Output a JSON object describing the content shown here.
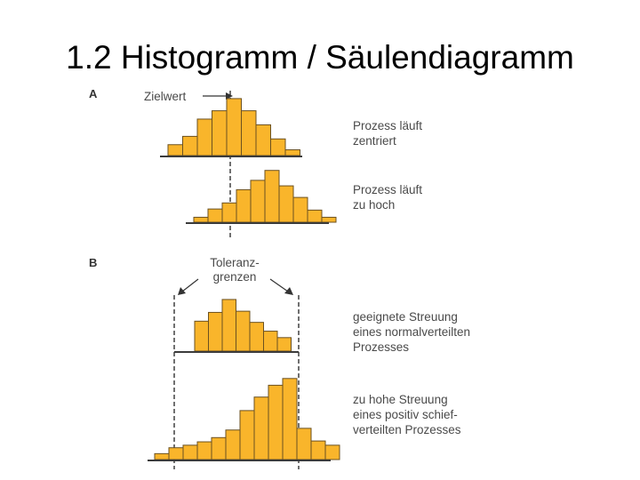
{
  "title": "1.2 Histogramm / Säulendiagramm",
  "section_a": {
    "label": "A",
    "target_label": "Zielwert",
    "hist_centered": {
      "values": [
        0.17,
        0.3,
        0.57,
        0.7,
        0.89,
        0.7,
        0.48,
        0.26,
        0.09
      ]
    },
    "hist_high": {
      "values": [
        0.09,
        0.24,
        0.35,
        0.59,
        0.76,
        0.94,
        0.66,
        0.45,
        0.22,
        0.09
      ]
    },
    "caption_centered": [
      "Prozess läuft",
      "zentriert"
    ],
    "caption_high": [
      "Prozess läuft",
      "zu hoch"
    ]
  },
  "section_b": {
    "label": "B",
    "tolerance_label": [
      "Toleranz-",
      "grenzen"
    ],
    "hist_normal": {
      "values": [
        0.51,
        0.66,
        0.88,
        0.68,
        0.49,
        0.34,
        0.23
      ]
    },
    "hist_skewed": {
      "values": [
        0.07,
        0.14,
        0.17,
        0.21,
        0.26,
        0.35,
        0.58,
        0.74,
        0.88,
        0.96,
        0.37,
        0.22,
        0.17
      ]
    },
    "caption_normal": [
      "geeignete Streuung",
      "eines normalverteilten",
      "Prozesses"
    ],
    "caption_skewed": [
      "zu hohe Streuung",
      "eines positiv schief-",
      "verteilten Prozesses"
    ]
  }
}
